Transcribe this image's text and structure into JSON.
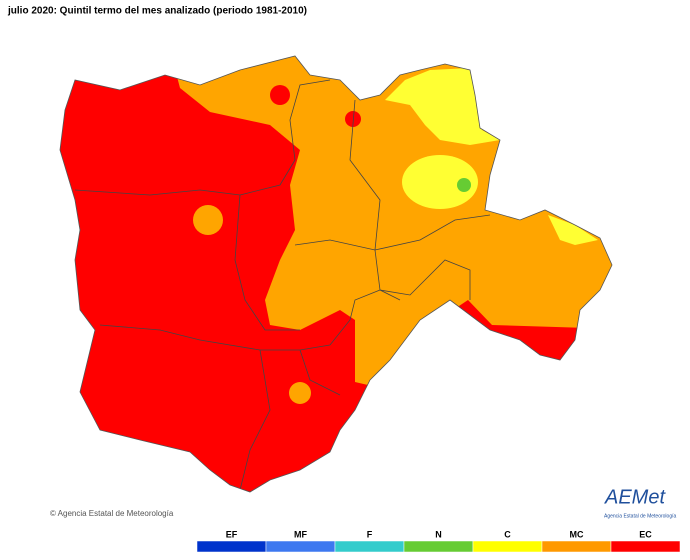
{
  "header": {
    "title": "julio 2020: Quintil termo del mes analizado (periodo 1981-2010)"
  },
  "footer": {
    "copyright": "© Agencia Estatal de Meteorología"
  },
  "logo": {
    "name": "AEMet",
    "subtitle": "Agencia Estatal de Meteorología"
  },
  "legend": {
    "items": [
      {
        "label": "EF",
        "color": "#0033cc"
      },
      {
        "label": "MF",
        "color": "#3d78f0"
      },
      {
        "label": "F",
        "color": "#33cccc"
      },
      {
        "label": "N",
        "color": "#66cc33"
      },
      {
        "label": "C",
        "color": "#ffff00"
      },
      {
        "label": "MC",
        "color": "#ff9900"
      },
      {
        "label": "EC",
        "color": "#ff0000"
      }
    ]
  }
}
